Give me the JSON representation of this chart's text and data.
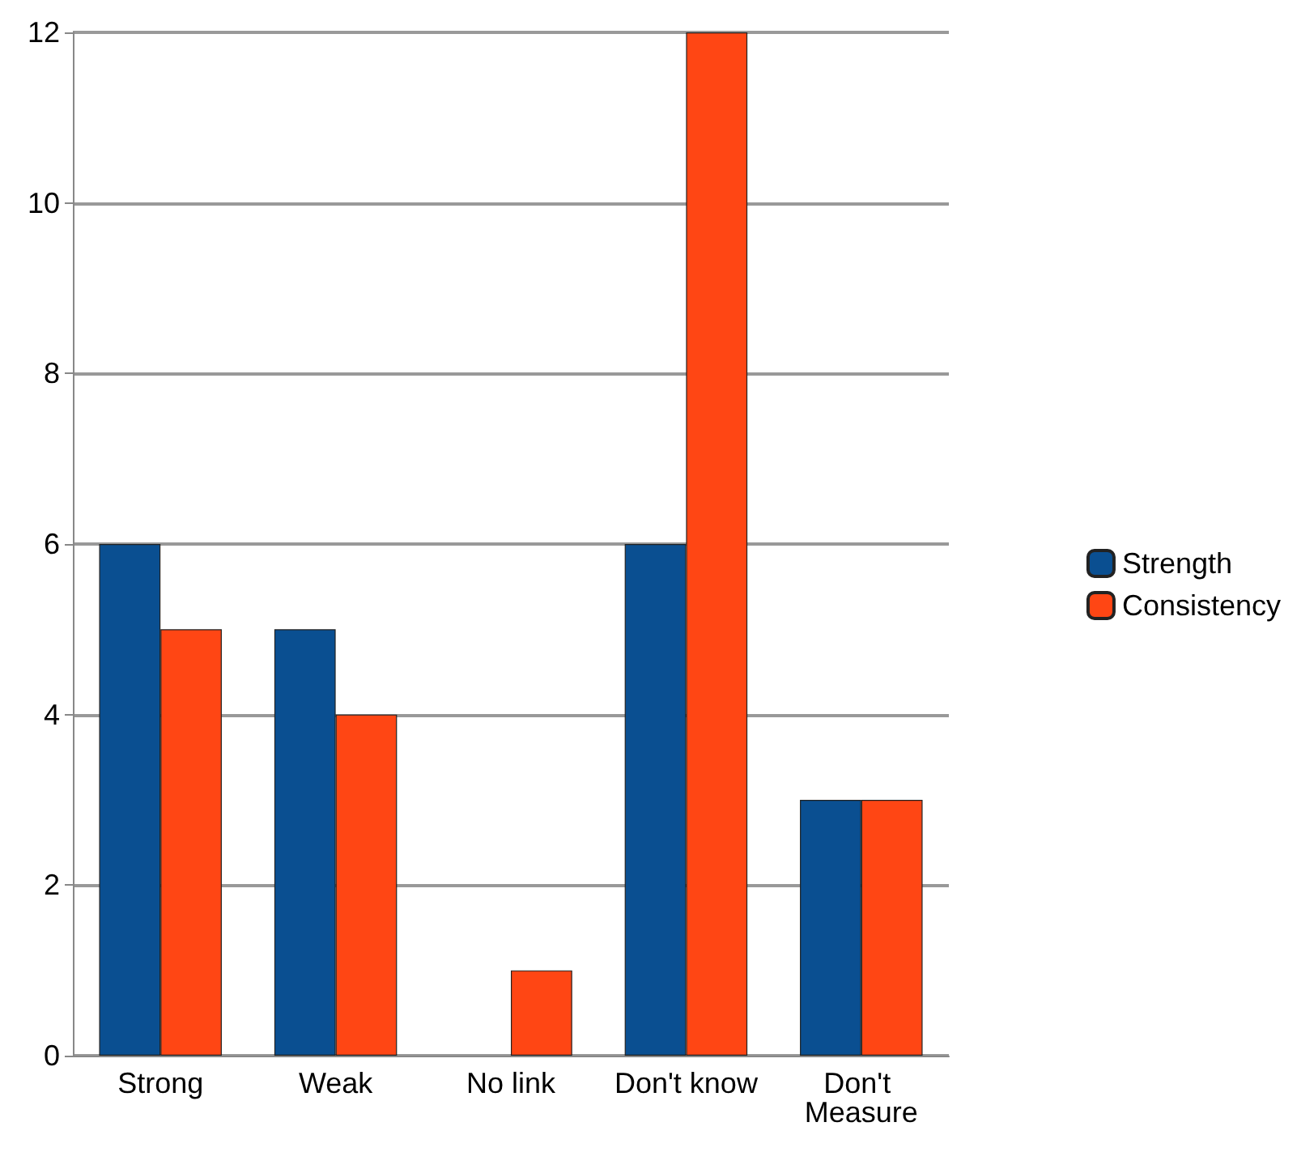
{
  "chart_data": {
    "type": "bar",
    "categories": [
      "Strong",
      "Weak",
      "No link",
      "Don't know",
      "Don't Measure"
    ],
    "series": [
      {
        "name": "Strength",
        "color": "#0a4f91",
        "values": [
          6,
          5,
          null,
          6,
          3
        ]
      },
      {
        "name": "Consistency",
        "color": "#ff4614",
        "values": [
          5,
          4,
          1,
          12,
          3
        ]
      }
    ],
    "ylim": [
      0,
      12
    ],
    "yticks": [
      0,
      2,
      4,
      6,
      8,
      10,
      12
    ],
    "grid": "y",
    "legend": "right"
  }
}
